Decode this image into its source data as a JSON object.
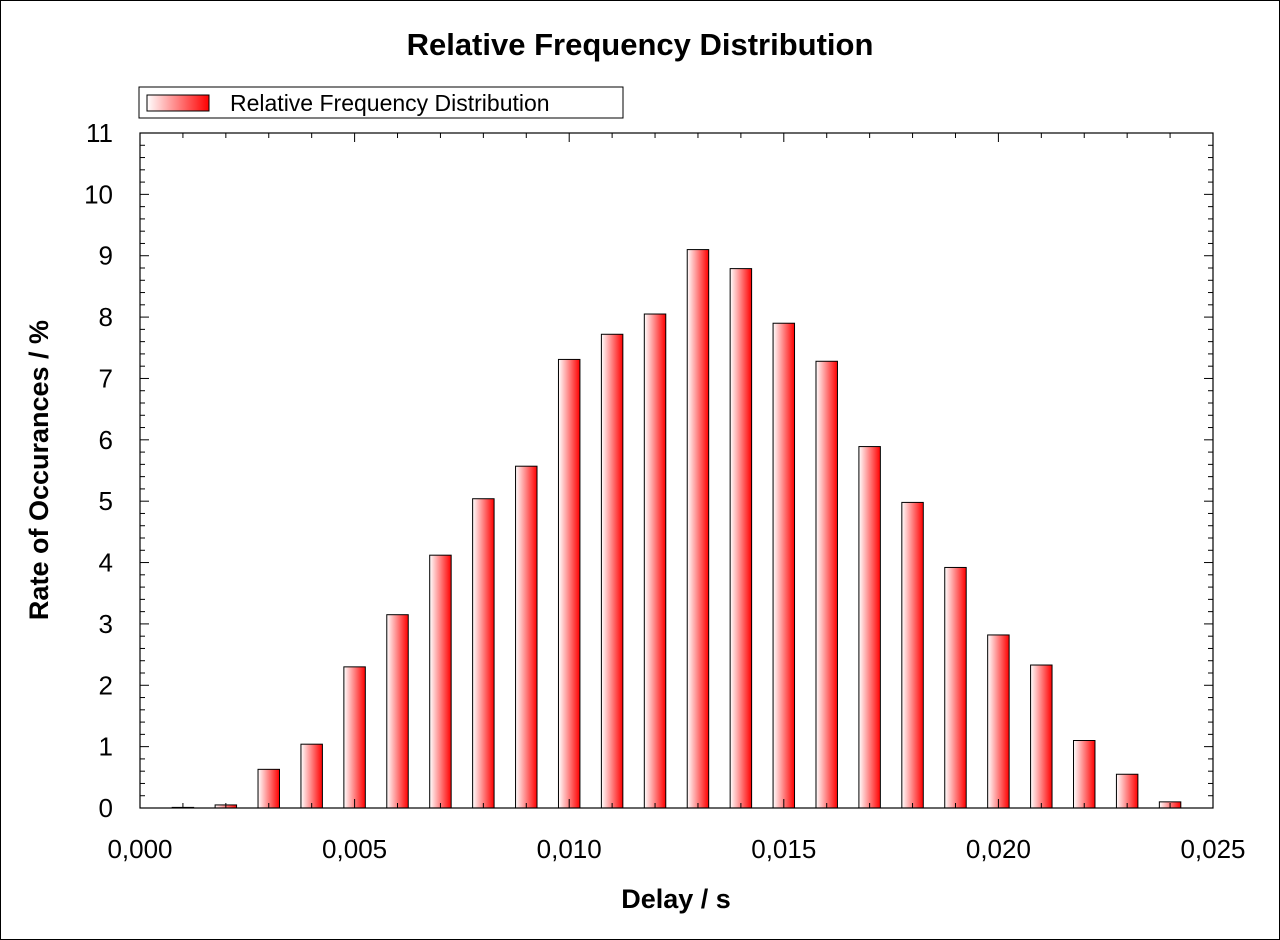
{
  "chart_data": {
    "type": "bar",
    "title": "Relative Frequency Distribution",
    "xlabel": "Delay / s",
    "ylabel": "Rate of Occurances / %",
    "xlim": [
      0,
      0.025
    ],
    "ylim": [
      0,
      11
    ],
    "x_ticks": [
      0,
      0.005,
      0.01,
      0.015,
      0.02,
      0.025
    ],
    "x_tick_labels": [
      "0,000",
      "0,005",
      "0,010",
      "0,015",
      "0,020",
      "0,025"
    ],
    "y_ticks": [
      0,
      1,
      2,
      3,
      4,
      5,
      6,
      7,
      8,
      9,
      10,
      11
    ],
    "y_tick_labels": [
      "0",
      "1",
      "2",
      "3",
      "4",
      "5",
      "6",
      "7",
      "8",
      "9",
      "10",
      "11"
    ],
    "bar_width": 0.0005,
    "grid": false,
    "legend": {
      "position": "top-left"
    },
    "bar_color": "#ff0000",
    "series": [
      {
        "name": "Relative Frequency Distribution",
        "x": [
          0.001,
          0.002,
          0.003,
          0.004,
          0.005,
          0.006,
          0.007,
          0.008,
          0.009,
          0.01,
          0.011,
          0.012,
          0.013,
          0.014,
          0.015,
          0.016,
          0.017,
          0.018,
          0.019,
          0.02,
          0.021,
          0.022,
          0.023,
          0.024
        ],
        "values": [
          0.0,
          0.05,
          0.63,
          1.04,
          2.3,
          3.15,
          4.12,
          5.04,
          5.57,
          7.31,
          7.72,
          8.05,
          9.1,
          8.79,
          7.9,
          7.28,
          5.89,
          4.98,
          3.92,
          2.82,
          2.33,
          1.1,
          0.55,
          0.1
        ]
      }
    ]
  }
}
